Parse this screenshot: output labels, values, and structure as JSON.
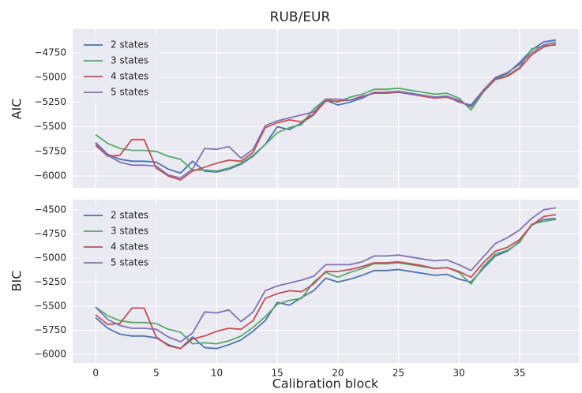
{
  "chart_data": [
    {
      "type": "line",
      "title": "RUB/EUR",
      "ylabel": "AIC",
      "x": [
        0,
        1,
        2,
        3,
        4,
        5,
        6,
        7,
        8,
        9,
        10,
        11,
        12,
        13,
        14,
        15,
        16,
        17,
        18,
        19,
        20,
        21,
        22,
        23,
        24,
        25,
        26,
        27,
        28,
        29,
        30,
        31,
        32,
        33,
        34,
        35,
        36,
        37,
        38
      ],
      "xlim": [
        -1.9,
        39.9
      ],
      "ylim": [
        -6120,
        -4510
      ],
      "yticks": [
        {
          "value": -6000,
          "label": "−6000"
        },
        {
          "value": -5750,
          "label": "−5750"
        },
        {
          "value": -5500,
          "label": "−5500"
        },
        {
          "value": -5250,
          "label": "−5250"
        },
        {
          "value": -5000,
          "label": "−5000"
        },
        {
          "value": -4750,
          "label": "−4750"
        }
      ],
      "grid": true,
      "legend": "upper left",
      "series": [
        {
          "name": "2 states",
          "color": "#4c72b0",
          "values": [
            -5660,
            -5780,
            -5830,
            -5850,
            -5850,
            -5860,
            -5930,
            -5970,
            -5850,
            -5950,
            -5960,
            -5930,
            -5880,
            -5800,
            -5680,
            -5500,
            -5530,
            -5460,
            -5380,
            -5230,
            -5280,
            -5250,
            -5210,
            -5150,
            -5150,
            -5140,
            -5160,
            -5180,
            -5200,
            -5190,
            -5250,
            -5280,
            -5130,
            -5010,
            -4960,
            -4850,
            -4720,
            -4640,
            -4620
          ]
        },
        {
          "name": "3 states",
          "color": "#55a868",
          "values": [
            -5580,
            -5670,
            -5720,
            -5740,
            -5740,
            -5750,
            -5800,
            -5830,
            -5940,
            -5940,
            -5950,
            -5920,
            -5870,
            -5790,
            -5680,
            -5560,
            -5510,
            -5480,
            -5320,
            -5220,
            -5250,
            -5200,
            -5170,
            -5120,
            -5120,
            -5110,
            -5130,
            -5150,
            -5170,
            -5160,
            -5210,
            -5330,
            -5150,
            -5020,
            -4980,
            -4900,
            -4710,
            -4680,
            -4670
          ]
        },
        {
          "name": "4 states",
          "color": "#c44e52",
          "values": [
            -5690,
            -5800,
            -5790,
            -5630,
            -5630,
            -5920,
            -6000,
            -6040,
            -5950,
            -5910,
            -5870,
            -5840,
            -5850,
            -5760,
            -5510,
            -5460,
            -5430,
            -5450,
            -5370,
            -5240,
            -5240,
            -5230,
            -5190,
            -5160,
            -5160,
            -5150,
            -5170,
            -5190,
            -5210,
            -5200,
            -5240,
            -5300,
            -5140,
            -5020,
            -4990,
            -4910,
            -4770,
            -4690,
            -4660
          ]
        },
        {
          "name": "5 states",
          "color": "#8172b2",
          "values": [
            -5670,
            -5790,
            -5860,
            -5890,
            -5890,
            -5900,
            -5990,
            -6020,
            -5930,
            -5720,
            -5730,
            -5700,
            -5820,
            -5730,
            -5490,
            -5440,
            -5410,
            -5380,
            -5350,
            -5220,
            -5220,
            -5230,
            -5200,
            -5150,
            -5150,
            -5140,
            -5170,
            -5180,
            -5200,
            -5190,
            -5230,
            -5300,
            -5130,
            -5000,
            -4950,
            -4870,
            -4750,
            -4670,
            -4640
          ]
        }
      ]
    },
    {
      "type": "line",
      "ylabel": "BIC",
      "xlabel": "Calibration block",
      "x": [
        0,
        1,
        2,
        3,
        4,
        5,
        6,
        7,
        8,
        9,
        10,
        11,
        12,
        13,
        14,
        15,
        16,
        17,
        18,
        19,
        20,
        21,
        22,
        23,
        24,
        25,
        26,
        27,
        28,
        29,
        30,
        31,
        32,
        33,
        34,
        35,
        36,
        37,
        38
      ],
      "xlim": [
        -1.9,
        39.9
      ],
      "xticks": [
        0,
        5,
        10,
        15,
        20,
        25,
        30,
        35
      ],
      "ylim": [
        -6090,
        -4395
      ],
      "yticks": [
        {
          "value": -6000,
          "label": "−6000"
        },
        {
          "value": -5750,
          "label": "−5750"
        },
        {
          "value": -5500,
          "label": "−5500"
        },
        {
          "value": -5250,
          "label": "−5250"
        },
        {
          "value": -5000,
          "label": "−5000"
        },
        {
          "value": -4750,
          "label": "−4750"
        },
        {
          "value": -4500,
          "label": "−4500"
        }
      ],
      "grid": true,
      "legend": "upper left",
      "series": [
        {
          "name": "2 states",
          "color": "#4c72b0",
          "values": [
            -5620,
            -5730,
            -5790,
            -5810,
            -5810,
            -5830,
            -5900,
            -5940,
            -5820,
            -5930,
            -5940,
            -5900,
            -5850,
            -5760,
            -5650,
            -5460,
            -5490,
            -5410,
            -5340,
            -5210,
            -5250,
            -5220,
            -5180,
            -5130,
            -5130,
            -5120,
            -5140,
            -5160,
            -5180,
            -5170,
            -5220,
            -5250,
            -5110,
            -4980,
            -4930,
            -4830,
            -4660,
            -4600,
            -4590
          ]
        },
        {
          "name": "3 states",
          "color": "#55a868",
          "values": [
            -5510,
            -5600,
            -5650,
            -5670,
            -5670,
            -5680,
            -5740,
            -5770,
            -5890,
            -5880,
            -5890,
            -5860,
            -5810,
            -5720,
            -5610,
            -5480,
            -5440,
            -5420,
            -5250,
            -5150,
            -5200,
            -5150,
            -5110,
            -5060,
            -5060,
            -5050,
            -5070,
            -5090,
            -5110,
            -5100,
            -5150,
            -5270,
            -5090,
            -4960,
            -4920,
            -4840,
            -4650,
            -4620,
            -4600
          ]
        },
        {
          "name": "4 states",
          "color": "#c44e52",
          "values": [
            -5590,
            -5690,
            -5680,
            -5520,
            -5520,
            -5820,
            -5910,
            -5940,
            -5840,
            -5810,
            -5760,
            -5730,
            -5740,
            -5650,
            -5420,
            -5370,
            -5340,
            -5350,
            -5270,
            -5140,
            -5140,
            -5120,
            -5090,
            -5050,
            -5050,
            -5040,
            -5060,
            -5080,
            -5110,
            -5100,
            -5140,
            -5200,
            -5050,
            -4930,
            -4890,
            -4810,
            -4660,
            -4570,
            -4550
          ]
        },
        {
          "name": "5 states",
          "color": "#8172b2",
          "values": [
            -5510,
            -5640,
            -5700,
            -5730,
            -5730,
            -5740,
            -5820,
            -5870,
            -5780,
            -5560,
            -5570,
            -5540,
            -5660,
            -5560,
            -5340,
            -5290,
            -5260,
            -5230,
            -5190,
            -5070,
            -5070,
            -5070,
            -5040,
            -4980,
            -4980,
            -4970,
            -4990,
            -5010,
            -5030,
            -5020,
            -5070,
            -5130,
            -4990,
            -4850,
            -4790,
            -4710,
            -4590,
            -4500,
            -4480
          ]
        }
      ]
    }
  ]
}
